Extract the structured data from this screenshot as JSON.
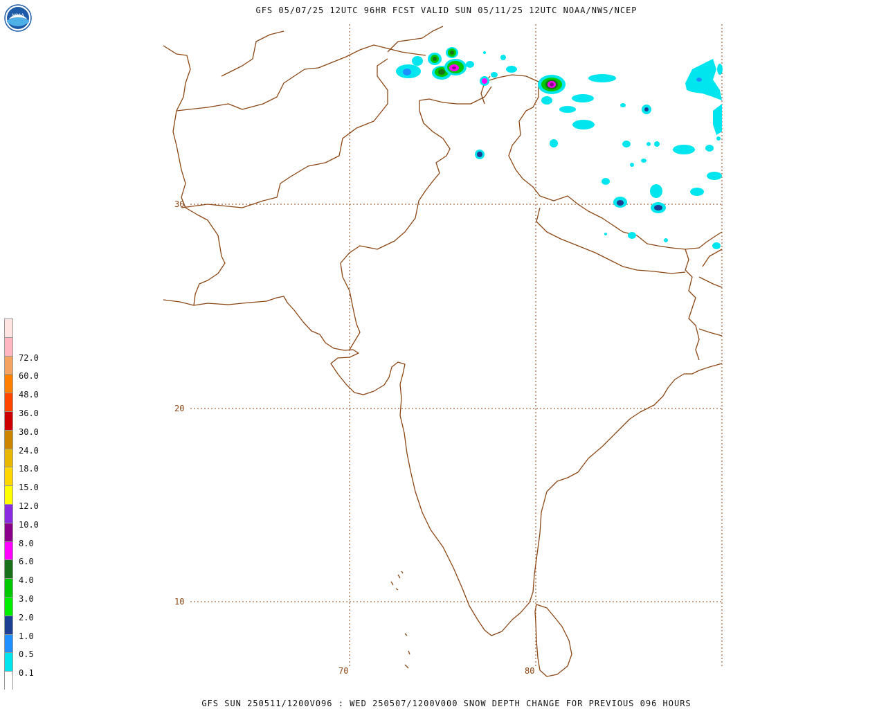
{
  "header": {
    "title": "GFS 05/07/25 12UTC 96HR FCST VALID SUN 05/11/25 12UTC NOAA/NWS/NCEP"
  },
  "footer": {
    "caption": "GFS SUN 250511/1200V096 : WED 250507/1200V000 SNOW DEPTH CHANGE FOR PREVIOUS 096 HOURS"
  },
  "logo": {
    "text": "NOAA"
  },
  "colors": {
    "coast": "#8b4513",
    "grid": "#8b4513"
  },
  "map": {
    "lat_labels": [
      "30",
      "20",
      "10"
    ],
    "lon_labels": [
      "70",
      "80"
    ]
  },
  "legend": {
    "bins": [
      {
        "label": "",
        "color": "#ffffff"
      },
      {
        "label": "0.1",
        "color": "#00e5ee"
      },
      {
        "label": "0.5",
        "color": "#1e90ff"
      },
      {
        "label": "1.0",
        "color": "#1c3f94"
      },
      {
        "label": "2.0",
        "color": "#00ee00"
      },
      {
        "label": "3.0",
        "color": "#00c800"
      },
      {
        "label": "4.0",
        "color": "#187018"
      },
      {
        "label": "6.0",
        "color": "#ff00ff"
      },
      {
        "label": "8.0",
        "color": "#8b008b"
      },
      {
        "label": "10.0",
        "color": "#8a2be2"
      },
      {
        "label": "12.0",
        "color": "#ffff00"
      },
      {
        "label": "15.0",
        "color": "#ffd700"
      },
      {
        "label": "18.0",
        "color": "#e8b800"
      },
      {
        "label": "24.0",
        "color": "#cd8500"
      },
      {
        "label": "30.0",
        "color": "#cd0000"
      },
      {
        "label": "36.0",
        "color": "#ff4500"
      },
      {
        "label": "48.0",
        "color": "#ff7f00"
      },
      {
        "label": "60.0",
        "color": "#f4a460"
      },
      {
        "label": "72.0",
        "color": "#ffb6c1"
      },
      {
        "label": "",
        "color": "#ffe4e1"
      }
    ]
  }
}
